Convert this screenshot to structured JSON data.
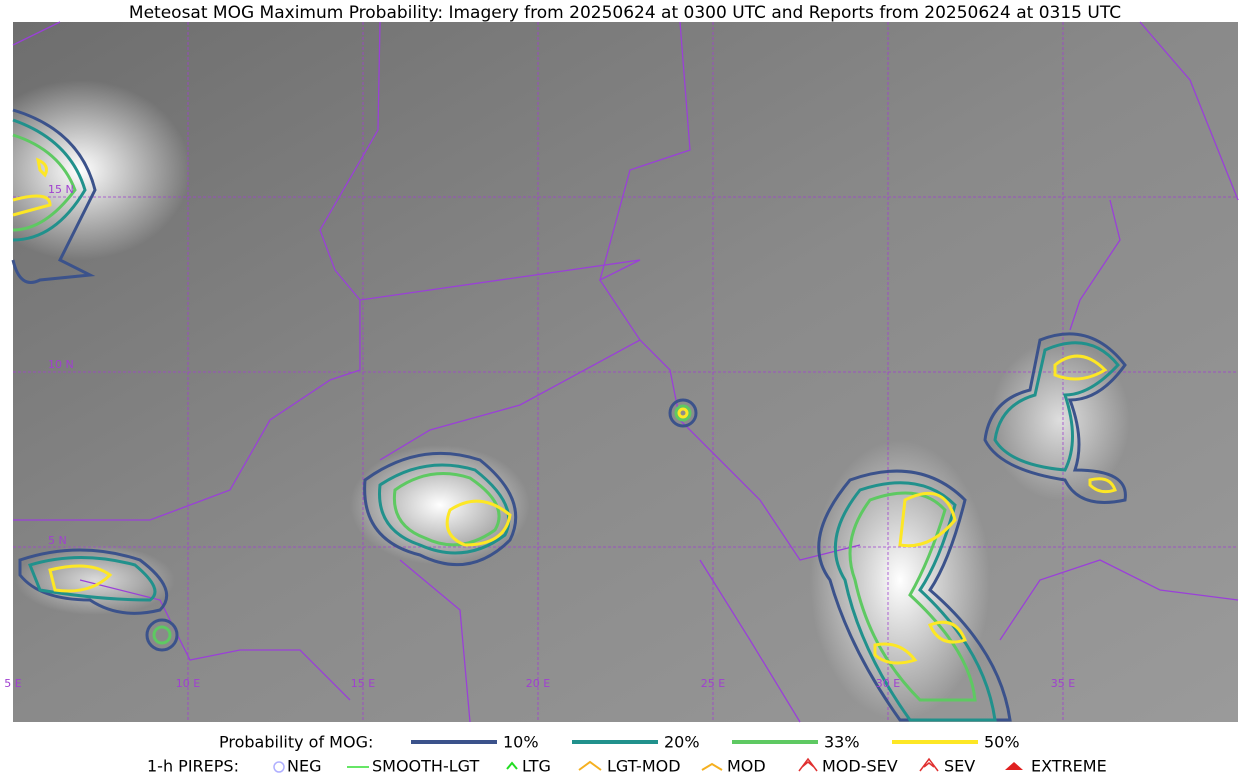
{
  "title": "Meteosat MOG Maximum Probability: Imagery from 20250624 at 0300 UTC and Reports from 20250624 at 0315 UTC",
  "map": {
    "lat_labels": [
      "15 N",
      "10 N",
      "5 N"
    ],
    "lon_labels": [
      "5 E",
      "10 E",
      "15 E",
      "20 E",
      "25 E",
      "30 E",
      "35 E"
    ]
  },
  "legend": {
    "probability": {
      "label": "Probability of MOG:",
      "items": [
        "10%",
        "20%",
        "33%",
        "50%"
      ]
    },
    "pireps": {
      "label": "1-h PIREPS:",
      "items": [
        "NEG",
        "SMOOTH-LGT",
        "LTG",
        "LGT-MOD",
        "MOD",
        "MOD-SEV",
        "SEV",
        "EXTREME"
      ]
    }
  }
}
